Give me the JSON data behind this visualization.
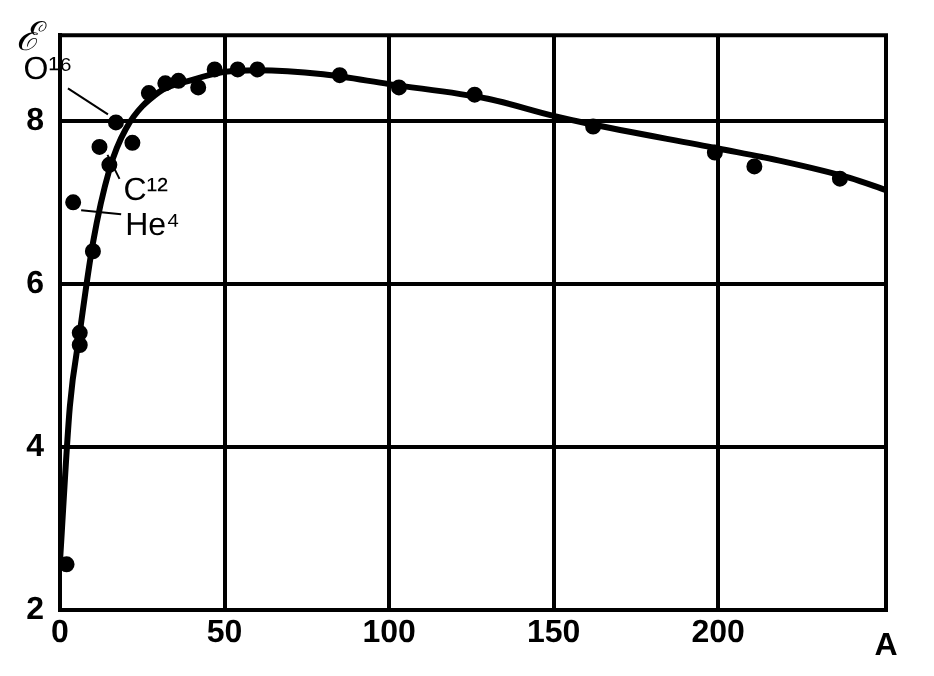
{
  "chart_data": {
    "type": "scatter",
    "xlabel": "A",
    "ylabel": "ℰ",
    "xlim": [
      0,
      251
    ],
    "ylim": [
      2,
      9.05
    ],
    "xticks": [
      0,
      50,
      100,
      150,
      200
    ],
    "yticks": [
      2,
      4,
      6,
      8
    ],
    "grid": true,
    "legend": false,
    "marker": "circle",
    "series": [
      {
        "color": "#000000",
        "x": [
          2,
          4,
          6,
          6,
          10,
          12,
          15,
          17,
          22,
          27,
          32,
          36,
          42,
          47,
          54,
          60,
          85,
          103,
          126,
          162,
          199,
          211,
          237
        ],
        "values": [
          2.56,
          7.0,
          5.25,
          5.4,
          6.4,
          7.68,
          7.46,
          7.98,
          7.73,
          8.34,
          8.46,
          8.49,
          8.41,
          8.63,
          8.63,
          8.63,
          8.56,
          8.41,
          8.32,
          7.93,
          7.61,
          7.44,
          7.29
        ]
      },
      {
        "type": "line",
        "color": "#000000",
        "marker": "none",
        "x": [
          0,
          3,
          6,
          10,
          15,
          20,
          30,
          40,
          50,
          60,
          80,
          100,
          130,
          150,
          160,
          200,
          220,
          240,
          251
        ],
        "values": [
          2.6,
          4.5,
          5.4,
          6.5,
          7.4,
          7.9,
          8.35,
          8.5,
          8.6,
          8.62,
          8.57,
          8.45,
          8.27,
          8.06,
          7.97,
          7.66,
          7.5,
          7.3,
          7.15
        ]
      }
    ],
    "annotations": [
      {
        "text": "O¹⁶",
        "x": 17,
        "y": 7.98
      },
      {
        "text": "C¹²",
        "x": 12,
        "y": 7.68
      },
      {
        "text": "He⁴",
        "x": 4,
        "y": 7.0
      }
    ]
  }
}
